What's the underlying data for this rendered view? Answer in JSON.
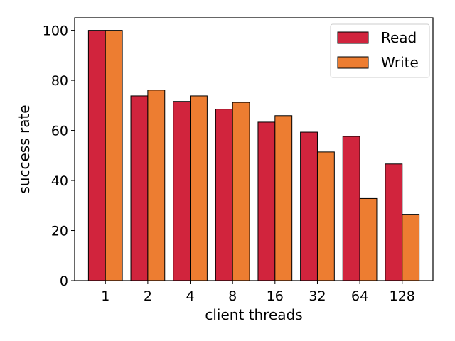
{
  "chart_data": {
    "type": "bar",
    "title": "",
    "xlabel": "client threads",
    "ylabel": "success rate",
    "categories": [
      "1",
      "2",
      "4",
      "8",
      "16",
      "32",
      "64",
      "128"
    ],
    "series": [
      {
        "name": "Read",
        "color": "#d1243d",
        "values": [
          100,
          73.8,
          71.6,
          68.5,
          63.3,
          59.3,
          57.6,
          46.6
        ]
      },
      {
        "name": "Write",
        "color": "#ed7d31",
        "values": [
          100,
          76.1,
          73.8,
          71.2,
          65.9,
          51.4,
          32.8,
          26.5
        ]
      }
    ],
    "ylim": [
      0,
      105
    ],
    "yticks": [
      0,
      20,
      40,
      60,
      80,
      100
    ],
    "grid": false,
    "legend_position": "top-right"
  }
}
